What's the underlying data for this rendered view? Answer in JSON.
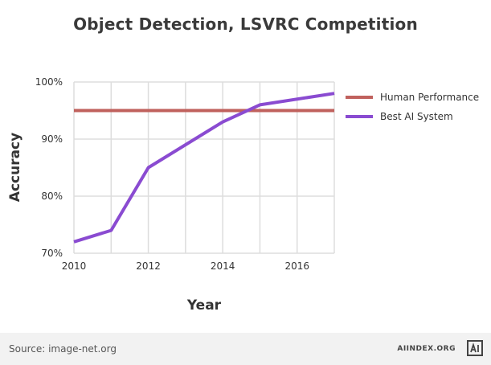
{
  "page": {
    "source": "Source: image-net.org",
    "brand": "AIINDEX.ORG",
    "logo_icon": "ai-index-logo-icon"
  },
  "chart_data": {
    "type": "line",
    "title": "Object Detection, LSVRC Competition",
    "xlabel": "Year",
    "ylabel": "Accuracy",
    "xlim": [
      2010,
      2017
    ],
    "ylim": [
      70,
      100
    ],
    "xticks": [
      "2010",
      "2012",
      "2014",
      "2016"
    ],
    "yticks": [
      "70%",
      "80%",
      "90%",
      "100%"
    ],
    "grid": true,
    "legend_position": "right",
    "series": [
      {
        "name": "Human Performance",
        "color": "#c0615d",
        "x": [
          2010,
          2017
        ],
        "y": [
          95,
          95
        ]
      },
      {
        "name": "Best AI System",
        "color": "#8a4bd1",
        "x": [
          2010,
          2011,
          2012,
          2014,
          2015,
          2017
        ],
        "y": [
          72,
          74,
          85,
          93,
          96,
          98
        ]
      }
    ]
  }
}
